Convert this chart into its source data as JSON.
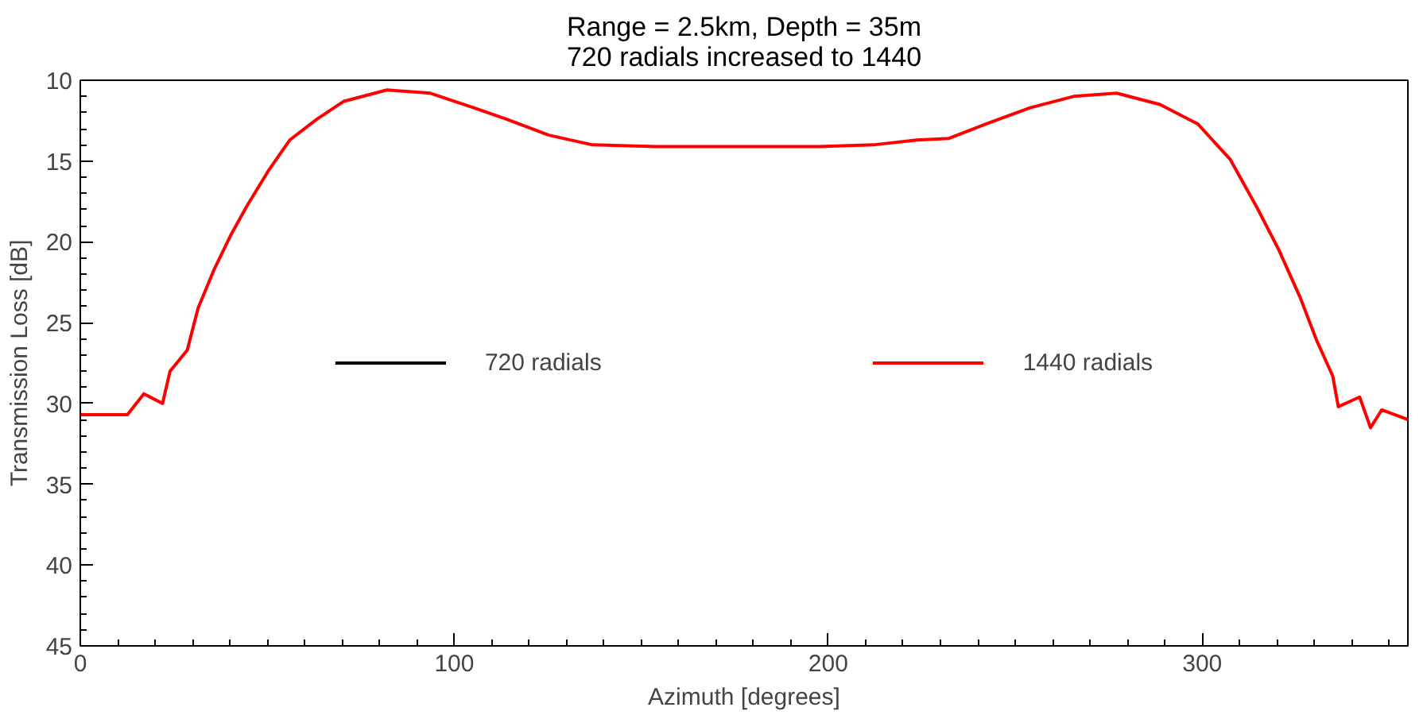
{
  "chart_data": {
    "type": "line",
    "title": "Range = 2.5km, Depth = 35m\n720 radials increased to 1440",
    "xlabel": "Azimuth [degrees]",
    "ylabel": "Transmission Loss [dB]",
    "x": [
      0,
      12.6,
      17,
      22,
      24,
      28.6,
      31.5,
      35.8,
      40.2,
      44.5,
      50.3,
      56,
      63.3,
      70.5,
      82,
      93.6,
      105.2,
      113.9,
      125.3,
      137,
      154,
      176,
      197.7,
      212,
      223.7,
      232.3,
      242.3,
      254,
      265.6,
      277.1,
      288.7,
      298.8,
      307.5,
      314.7,
      320.5,
      326.3,
      330.6,
      334.9,
      336.4,
      342.1,
      345,
      348,
      355
    ],
    "series": [
      {
        "name": "720 radials",
        "color": "#000000",
        "values": [
          null,
          null,
          null,
          null,
          null,
          null,
          null,
          null,
          null,
          null,
          null,
          null,
          null,
          null,
          null,
          null,
          null,
          null,
          null,
          null,
          null,
          null,
          null,
          null,
          null,
          null,
          null,
          null,
          null,
          null,
          null,
          null,
          null,
          null,
          null,
          null,
          null,
          null,
          null,
          null,
          null,
          null,
          null
        ]
      },
      {
        "name": "1440 radials",
        "color": "#ff0000",
        "values": [
          30.7,
          30.7,
          29.4,
          30,
          28.0,
          26.7,
          24.1,
          21.7,
          19.6,
          17.8,
          15.6,
          13.7,
          12.4,
          11.3,
          10.6,
          10.8,
          11.7,
          12.4,
          13.4,
          14.0,
          14.1,
          14.1,
          14.1,
          14.0,
          13.7,
          13.6,
          12.7,
          11.7,
          11.0,
          10.8,
          11.5,
          12.7,
          14.9,
          17.9,
          20.5,
          23.5,
          26.1,
          28.3,
          30.2,
          29.6,
          31.5,
          30.4,
          31.0
        ]
      }
    ],
    "xlim": [
      0,
      355
    ],
    "ylim": [
      45,
      10
    ],
    "xticks": [
      0,
      100,
      200,
      300
    ],
    "yticks": [
      10,
      15,
      20,
      25,
      30,
      35,
      40,
      45
    ],
    "grid": false,
    "legend": "center",
    "line_style": "solid",
    "marker": "none"
  }
}
